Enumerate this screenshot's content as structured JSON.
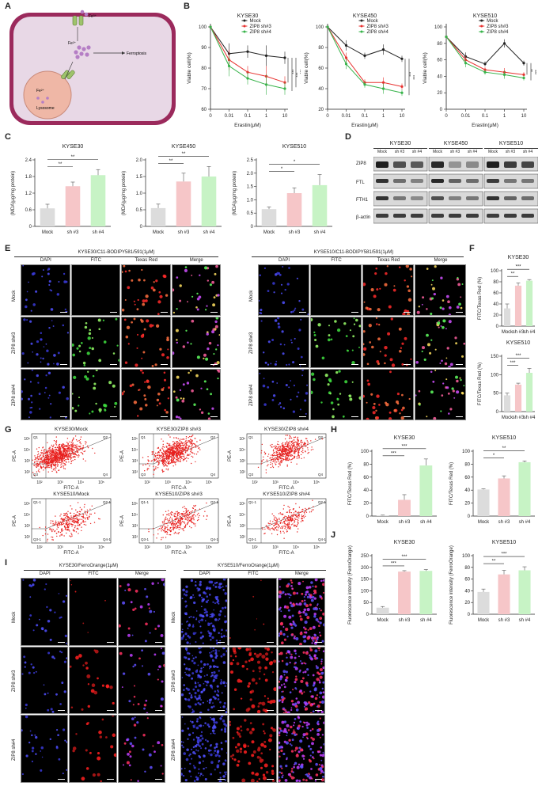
{
  "panel_labels": {
    "A": "A",
    "B": "B",
    "C": "C",
    "D": "D",
    "E": "E",
    "F": "F",
    "G": "G",
    "H": "H",
    "I": "I",
    "J": "J"
  },
  "panelA": {
    "fe3": "Fe³⁺",
    "fe2": "Fe²⁺",
    "fe2_lyso": "Fe²⁺",
    "lysosome": "Lysosome",
    "ferroptosis": "Ferroptosis",
    "colors": {
      "cell_fill": "#e8d8e6",
      "membrane": "#9b2a5c",
      "lysosome": "#efb7a6",
      "iron": "#b57ec5",
      "transporter": "#9ec36b"
    }
  },
  "chart_data": [
    {
      "id": "B1",
      "type": "line",
      "title": "KYSE30",
      "xlabel": "Erastin(μM)",
      "ylabel": "Viable cell(%)",
      "x": [
        "0",
        "0.01",
        "0.1",
        "1",
        "10"
      ],
      "ylim": [
        60,
        100
      ],
      "yticks": [
        60,
        70,
        80,
        90,
        100
      ],
      "series": [
        {
          "name": "Mock",
          "color": "#222222",
          "values": [
            100,
            87,
            88,
            86,
            85
          ]
        },
        {
          "name": "ZIP8 sh#3",
          "color": "#e8312f",
          "values": [
            100,
            84,
            78,
            76,
            73
          ]
        },
        {
          "name": "ZIP8 sh#4",
          "color": "#37b34a",
          "values": [
            100,
            81,
            75,
            72,
            70
          ]
        }
      ],
      "sig": [
        "***",
        "***",
        "***"
      ]
    },
    {
      "id": "B2",
      "type": "line",
      "title": "KYSE450",
      "xlabel": "Erastin(μM)",
      "ylabel": "Viable cell(%)",
      "x": [
        "0",
        "0.01",
        "0.1",
        "1",
        "10"
      ],
      "ylim": [
        20,
        100
      ],
      "yticks": [
        20,
        40,
        60,
        80,
        100
      ],
      "series": [
        {
          "name": "Mock",
          "color": "#222222",
          "values": [
            100,
            82,
            72,
            78,
            69
          ]
        },
        {
          "name": "ZIP8 sh#3",
          "color": "#e8312f",
          "values": [
            100,
            70,
            46,
            46,
            42
          ]
        },
        {
          "name": "ZIP8 sh#4",
          "color": "#37b34a",
          "values": [
            100,
            64,
            44,
            40,
            36
          ]
        }
      ],
      "sig": [
        "***",
        "***"
      ]
    },
    {
      "id": "B3",
      "type": "line",
      "title": "KYSE510",
      "xlabel": "Erastin(μM)",
      "ylabel": "Viable cell(%)",
      "x": [
        "0",
        "0.01",
        "0.1",
        "1",
        "10"
      ],
      "ylim": [
        0,
        100
      ],
      "yticks": [
        0,
        20,
        40,
        60,
        80,
        100
      ],
      "series": [
        {
          "name": "Mock",
          "color": "#222222",
          "values": [
            88,
            64,
            55,
            80,
            56
          ]
        },
        {
          "name": "ZIP8 sh#3",
          "color": "#e8312f",
          "values": [
            88,
            60,
            48,
            45,
            42
          ]
        },
        {
          "name": "ZIP8 sh#4",
          "color": "#37b34a",
          "values": [
            88,
            56,
            45,
            42,
            38
          ]
        }
      ],
      "sig": [
        "**",
        "***"
      ]
    },
    {
      "id": "C1",
      "type": "bar",
      "title": "KYSE30",
      "ylabel": "(MDA)μg/mg protein)",
      "categories": [
        "Mock",
        "sh #3",
        "sh #4"
      ],
      "values": [
        0.65,
        1.45,
        1.85
      ],
      "errors": [
        0.15,
        0.15,
        0.2
      ],
      "ylim": [
        0,
        2.4
      ],
      "yticks": [
        "0",
        "0.6",
        "1.2",
        "1.8",
        "2.4"
      ],
      "colors": [
        "#dcdcdc",
        "#f6c6c8",
        "#c7f3c5"
      ],
      "brackets": [
        {
          "a": 0,
          "b": 1,
          "t": "**"
        },
        {
          "a": 0,
          "b": 2,
          "t": "**"
        }
      ]
    },
    {
      "id": "C2",
      "type": "bar",
      "title": "KYSE450",
      "ylabel": "(MDA)μg/mg protein)",
      "categories": [
        "Mock",
        "sh #3",
        "sh #4"
      ],
      "values": [
        0.55,
        1.35,
        1.5
      ],
      "errors": [
        0.12,
        0.25,
        0.3
      ],
      "ylim": [
        0,
        2.0
      ],
      "yticks": [
        "0",
        "0.5",
        "1.0",
        "1.5",
        "2.0"
      ],
      "colors": [
        "#dcdcdc",
        "#f6c6c8",
        "#c7f3c5"
      ],
      "brackets": [
        {
          "a": 0,
          "b": 1,
          "t": "**"
        },
        {
          "a": 0,
          "b": 2,
          "t": "**"
        }
      ]
    },
    {
      "id": "C3",
      "type": "bar",
      "title": "KYSE510",
      "ylabel": "(MDA)μg/mg protein)",
      "categories": [
        "Mock",
        "sh #3",
        "sh #4"
      ],
      "values": [
        0.65,
        1.25,
        1.55
      ],
      "errors": [
        0.08,
        0.2,
        0.4
      ],
      "ylim": [
        0,
        2.5
      ],
      "yticks": [
        "0",
        "0.5",
        "1.0",
        "1.5",
        "2.0",
        "2.5"
      ],
      "colors": [
        "#dcdcdc",
        "#f6c6c8",
        "#c7f3c5"
      ],
      "brackets": [
        {
          "a": 0,
          "b": 1,
          "t": "*"
        },
        {
          "a": 0,
          "b": 2,
          "t": "*"
        }
      ]
    },
    {
      "id": "F1",
      "type": "bar",
      "title": "KYSE30",
      "ylabel": "FITC/Texas Red (%)",
      "categories": [
        "Mock",
        "sh #3",
        "sh #4"
      ],
      "values": [
        32,
        73,
        82
      ],
      "errors": [
        8,
        5,
        2
      ],
      "ylim": [
        0,
        100
      ],
      "yticks": [
        "0",
        "20",
        "40",
        "60",
        "80",
        "100"
      ],
      "colors": [
        "#dcdcdc",
        "#f6c6c8",
        "#c7f3c5"
      ],
      "brackets": [
        {
          "a": 0,
          "b": 1,
          "t": "**"
        },
        {
          "a": 0,
          "b": 2,
          "t": "***"
        }
      ]
    },
    {
      "id": "F2",
      "type": "bar",
      "title": "KYSE510",
      "ylabel": "FITC/Texas Red (%)",
      "categories": [
        "Mock",
        "sh #3",
        "sh #4"
      ],
      "values": [
        44,
        73,
        105
      ],
      "errors": [
        6,
        4,
        12
      ],
      "ylim": [
        0,
        150
      ],
      "yticks": [
        "0",
        "50",
        "100",
        "150"
      ],
      "colors": [
        "#dcdcdc",
        "#f6c6c8",
        "#c7f3c5"
      ],
      "brackets": [
        {
          "a": 0,
          "b": 1,
          "t": "***"
        },
        {
          "a": 0,
          "b": 2,
          "t": "***"
        }
      ]
    },
    {
      "id": "H1",
      "type": "bar",
      "title": "KYSE30",
      "ylabel": "FITC/Texas Red (%)",
      "categories": [
        "Mock",
        "sh #3",
        "sh #4"
      ],
      "values": [
        1,
        25,
        78
      ],
      "errors": [
        0.5,
        8,
        10
      ],
      "ylim": [
        0,
        100
      ],
      "yticks": [
        "0",
        "20",
        "40",
        "60",
        "80",
        "100"
      ],
      "colors": [
        "#dcdcdc",
        "#f6c6c8",
        "#c7f3c5"
      ],
      "brackets": [
        {
          "a": 0,
          "b": 1,
          "t": "***"
        },
        {
          "a": 0,
          "b": 2,
          "t": "***"
        }
      ]
    },
    {
      "id": "H2",
      "type": "bar",
      "title": "KYSE510",
      "ylabel": "FITC/Texas Red (%)",
      "categories": [
        "Mock",
        "sh #3",
        "sh #4"
      ],
      "values": [
        41,
        58,
        83
      ],
      "errors": [
        1,
        4,
        2
      ],
      "ylim": [
        0,
        100
      ],
      "yticks": [
        "0",
        "20",
        "40",
        "60",
        "80",
        "100"
      ],
      "colors": [
        "#dcdcdc",
        "#f6c6c8",
        "#c7f3c5"
      ],
      "brackets": [
        {
          "a": 0,
          "b": 1,
          "t": "*"
        },
        {
          "a": 0,
          "b": 2,
          "t": "**"
        }
      ]
    },
    {
      "id": "J1",
      "type": "bar",
      "title": "KYSE30",
      "ylabel": "Fluorescence intensity (FerroOrange)",
      "categories": [
        "Mock",
        "sh #3",
        "sh #4"
      ],
      "values": [
        28,
        182,
        185
      ],
      "errors": [
        5,
        4,
        6
      ],
      "ylim": [
        0,
        250
      ],
      "yticks": [
        "0",
        "50",
        "100",
        "150",
        "200",
        "250"
      ],
      "colors": [
        "#dcdcdc",
        "#f6c6c8",
        "#c7f3c5"
      ],
      "brackets": [
        {
          "a": 0,
          "b": 1,
          "t": "***"
        },
        {
          "a": 0,
          "b": 2,
          "t": "***"
        }
      ]
    },
    {
      "id": "J2",
      "type": "bar",
      "title": "KYSE510",
      "ylabel": "Fluorescence intensity (FerroOrange)",
      "categories": [
        "Mock",
        "sh #3",
        "sh #4"
      ],
      "values": [
        38,
        68,
        75
      ],
      "errors": [
        5,
        7,
        6
      ],
      "ylim": [
        0,
        100
      ],
      "yticks": [
        "0",
        "20",
        "40",
        "60",
        "80",
        "100"
      ],
      "colors": [
        "#dcdcdc",
        "#f6c6c8",
        "#c7f3c5"
      ],
      "brackets": [
        {
          "a": 0,
          "b": 1,
          "t": "**"
        },
        {
          "a": 0,
          "b": 2,
          "t": "***"
        }
      ]
    }
  ],
  "panelD": {
    "groups": [
      "KYSE30",
      "KYSE450",
      "KYSE510"
    ],
    "lanes": [
      "Mock",
      "sh #3",
      "sh #4"
    ],
    "rows": [
      "ZIP8",
      "FTL",
      "FTH1",
      "β-actin"
    ]
  },
  "panelE": {
    "left_title": "KYSE30/C11-BODIPY581/591(1μM)",
    "right_title": "KYSE510/C11-BODIPY581/591(1μM)",
    "columns": [
      "DAPI",
      "FITC",
      "Texas Red",
      "Merge"
    ],
    "rows": [
      "Mock",
      "ZIP8 sh#3",
      "ZIP8 sh#4"
    ]
  },
  "panelG": {
    "plots": [
      {
        "title": "KYSE30/Mock",
        "q": [
          "Q1",
          "Q2",
          "Q3",
          "Q4"
        ]
      },
      {
        "title": "KYSE30/ZIP8 sh#3",
        "q": [
          "Q1",
          "Q2",
          "Q3",
          "Q4"
        ]
      },
      {
        "title": "KYSE30/ZIP8 sh#4",
        "q": [
          "Q1",
          "Q2",
          "Q3",
          "Q4"
        ]
      },
      {
        "title": "KYSE510/Mock",
        "q": [
          "Q1-1",
          "Q2-1",
          "Q3-1",
          "Q4-1"
        ]
      },
      {
        "title": "KYSE510/ZIP8 sh#3",
        "q": [
          "Q1-1",
          "Q2-1",
          "Q3-1",
          "Q4-1"
        ]
      },
      {
        "title": "KYSE510/ZIP8 sh#4",
        "q": [
          "Q1-1",
          "Q2-1",
          "Q3-1",
          "Q4-1"
        ]
      }
    ],
    "xlabel": "FITC-A",
    "ylabel": "PE-A",
    "ticks": [
      "10²",
      "10³",
      "10⁴",
      "10⁵"
    ],
    "yticks": [
      "10²",
      "10³",
      "10⁴",
      "10⁵"
    ]
  },
  "panelI": {
    "left_title": "KYSE30/FerroOrange(1μM)",
    "right_title": "KYSE510/FerroOrange(1μM)",
    "columns": [
      "DAPI",
      "FITC",
      "Merge"
    ],
    "rows": [
      "Mock",
      "ZIP8 sh#3",
      "ZIP8 sh#4"
    ]
  }
}
